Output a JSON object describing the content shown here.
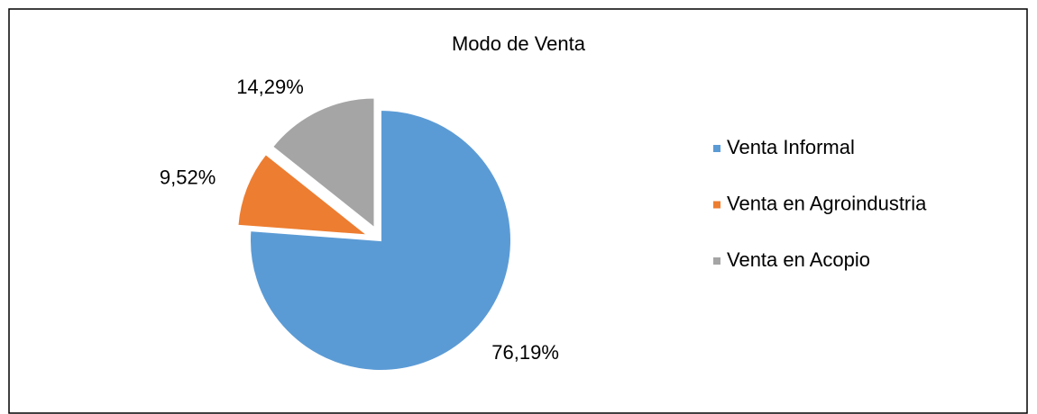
{
  "chart_data": {
    "type": "pie",
    "title": "Modo de Venta",
    "categories": [
      "Venta Informal",
      "Venta en Agroindustria",
      "Venta en Acopio"
    ],
    "values": [
      76.19,
      9.52,
      14.29
    ],
    "value_labels": [
      "76,19%",
      "9,52%",
      "14,29%"
    ],
    "colors": [
      "#5b9bd5",
      "#ed7d31",
      "#a5a5a5"
    ],
    "legend": "right"
  }
}
